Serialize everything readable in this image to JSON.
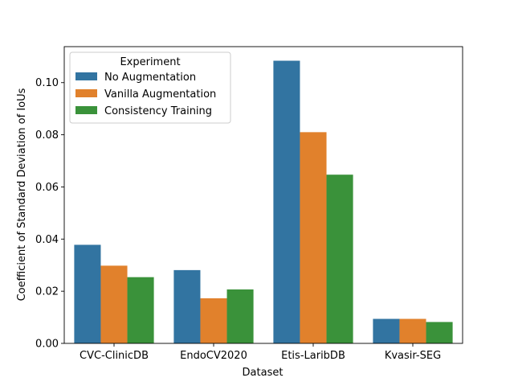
{
  "chart_data": {
    "type": "bar",
    "title": "",
    "xlabel": "Dataset",
    "ylabel": "Coefficient of Standard Deviation of IoUs",
    "categories": [
      "CVC-ClinicDB",
      "EndoCV2020",
      "Etis-LaribDB",
      "Kvasir-SEG"
    ],
    "series": [
      {
        "name": "No Augmentation",
        "color": "#3274a1",
        "values": [
          0.0378,
          0.0281,
          0.1084,
          0.0094
        ]
      },
      {
        "name": "Vanilla Augmentation",
        "color": "#e1812c",
        "values": [
          0.0298,
          0.0173,
          0.081,
          0.0094
        ]
      },
      {
        "name": "Consistency Training",
        "color": "#3a923a",
        "values": [
          0.0254,
          0.0207,
          0.0647,
          0.0082
        ]
      }
    ],
    "ylim": [
      0,
      0.1138
    ],
    "yticks": [
      0.0,
      0.02,
      0.04,
      0.06,
      0.08,
      0.1
    ],
    "ytick_labels": [
      "0.00",
      "0.02",
      "0.04",
      "0.06",
      "0.08",
      "0.10"
    ],
    "grid": false,
    "legend": {
      "title": "Experiment",
      "position": "top-left"
    }
  }
}
